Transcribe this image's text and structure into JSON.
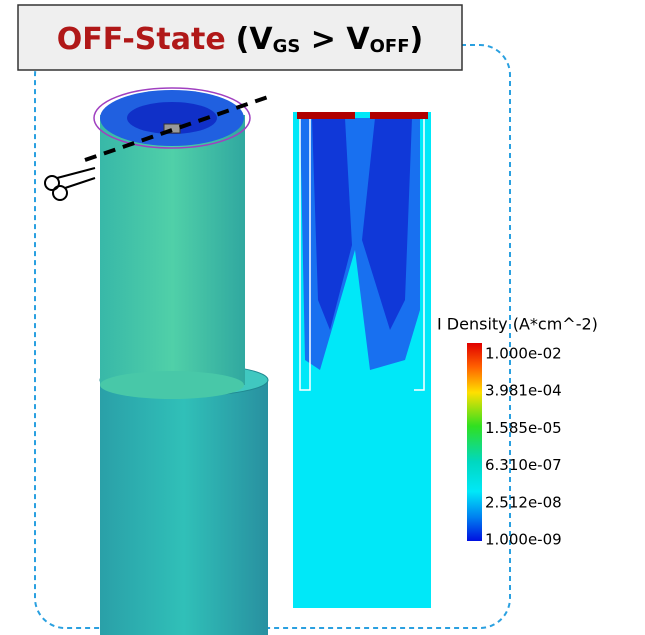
{
  "title": {
    "state": "OFF-State",
    "open": "(V",
    "sub1": "GS",
    "middle": " > V",
    "sub2": "OFF",
    "close": ")"
  },
  "legend": {
    "title": "I Density (A*cm^-2)",
    "labels": [
      "1.000e-02",
      "3.981e-04",
      "1.585e-05",
      "6.310e-07",
      "2.512e-08",
      "1.000e-09"
    ]
  }
}
